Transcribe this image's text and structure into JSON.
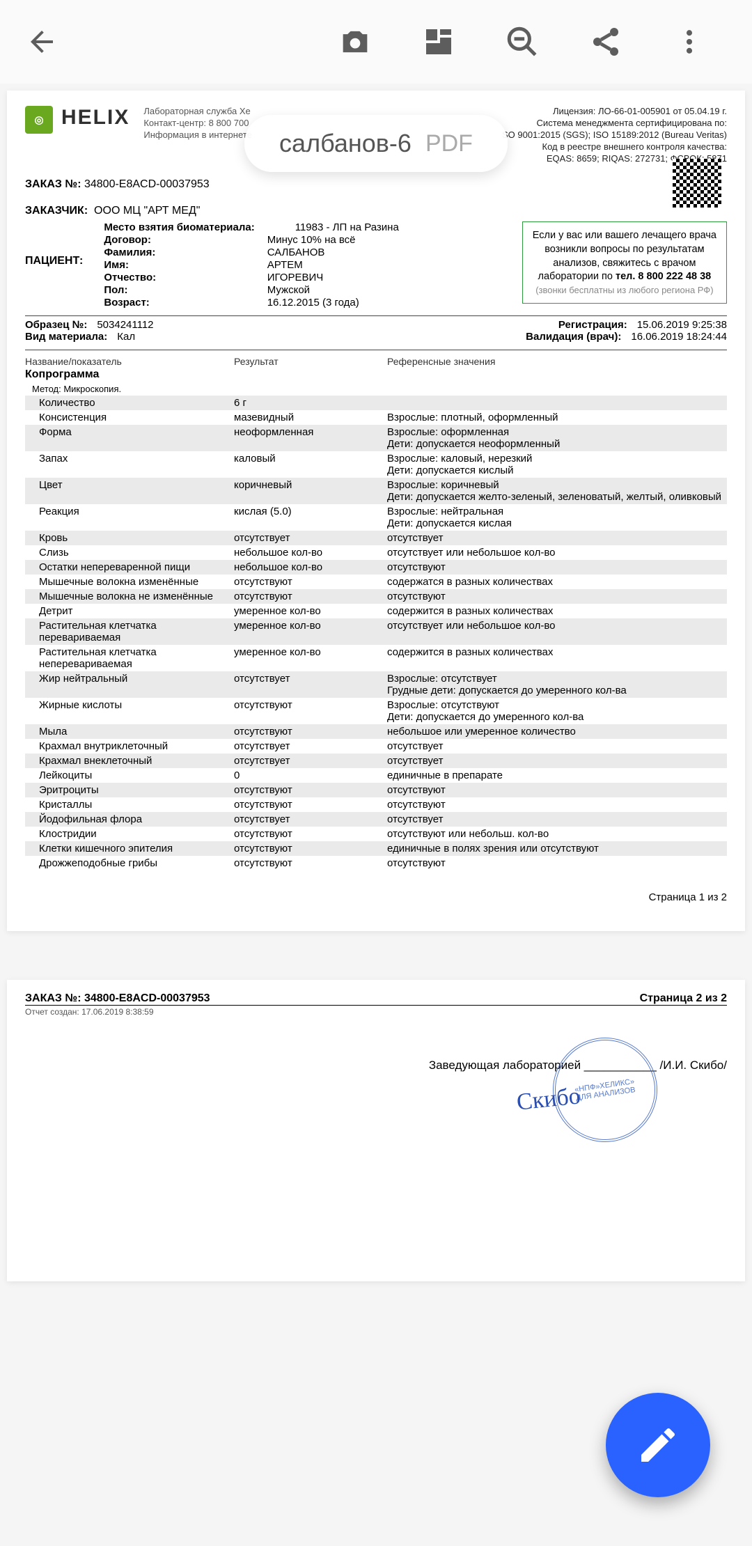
{
  "toolbar": {
    "filename": "салбанов-6",
    "ext": "PDF"
  },
  "brand": {
    "name": "HELIX",
    "lines": [
      "Лабораторная служба Хе",
      "Контакт-центр: 8 800 700",
      "Информация в интернете"
    ]
  },
  "license": [
    "Лицензия: ЛО-66-01-005901 от 05.04.19 г.",
    "Система менеджмента сертифицирована по:",
    "SO 9001:2015 (SGS); ISO 15189:2012 (Bureau Veritas)",
    "Код в реестре внешнего контроля качества:",
    "EQAS: 8659; RIQAS: 272731; ФСВОК: 5871"
  ],
  "order": {
    "label": "ЗАКАЗ №:",
    "value": "34800-E8ACD-00037953"
  },
  "customer": {
    "label": "ЗАКАЗЧИК:",
    "value": "ООО  МЦ \"АРТ МЕД\""
  },
  "patient": {
    "title": "ПАЦИЕНТ:",
    "site_label": "Место взятия биоматериала:",
    "site_value": "11983 - ЛП на Разина",
    "rows": [
      [
        "Договор:",
        "Минус 10% на всё"
      ],
      [
        "Фамилия:",
        "САЛБАНОВ"
      ],
      [
        "Имя:",
        "АРТЕМ"
      ],
      [
        "Отчество:",
        "ИГОРЕВИЧ"
      ],
      [
        "Пол:",
        "Мужской"
      ],
      [
        "Возраст:",
        "16.12.2015 (3 года)"
      ]
    ]
  },
  "sidebox": {
    "l1": "Если у вас или вашего лечащего врача",
    "l2": "возникли вопросы по результатам",
    "l3": "анализов, свяжитесь с врачом",
    "l4a": "лаборатории по ",
    "l4b": "тел. 8 800 222 48 38",
    "foot": "(звонки бесплатны из любого региона РФ)"
  },
  "sample": {
    "num_label": "Образец №:",
    "num_value": "5034241112",
    "mat_label": "Вид материала:",
    "mat_value": "Кал",
    "reg_label": "Регистрация:",
    "reg_value": "15.06.2019  9:25:38",
    "val_label": "Валидация (врач):",
    "val_value": "16.06.2019  18:24:44"
  },
  "table_head": {
    "c1": "Название/показатель",
    "c2": "Результат",
    "c3": "Референсные значения"
  },
  "section": "Копрограмма",
  "method": "Метод:  Микроскопия.",
  "rows": [
    [
      "Количество",
      "6 г",
      ""
    ],
    [
      "Консистенция",
      "мазевидный",
      "Взрослые: плотный, оформленный"
    ],
    [
      "Форма",
      "неоформленная",
      "Взрослые: оформленная\n Дети: допускается неоформленный"
    ],
    [
      "Запах",
      "каловый",
      "Взрослые: каловый, нерезкий\nДети: допускается кислый"
    ],
    [
      "Цвет",
      "коричневый",
      "Взрослые: коричневый\nДети: допускается желто-зеленый, зеленоватый, желтый, оливковый"
    ],
    [
      "Реакция",
      "кислая (5.0)",
      "Взрослые: нейтральная\nДети: допускается кислая"
    ],
    [
      "Кровь",
      "отсутствует",
      "отсутствует"
    ],
    [
      "Слизь",
      "небольшое кол-во",
      "отсутствует или небольшое кол-во"
    ],
    [
      "Остатки непереваренной пищи",
      "небольшое кол-во",
      "отсутствуют"
    ],
    [
      "Мышечные волокна изменённые",
      "отсутствуют",
      "содержатся в разных количествах"
    ],
    [
      "Мышечные волокна не изменённые",
      "отсутствуют",
      "отсутствуют"
    ],
    [
      "Детрит",
      "умеренное кол-во",
      "содержится в разных количествах"
    ],
    [
      "Растительная клетчатка перевариваемая",
      "умеренное кол-во",
      "отсутствует или небольшое кол-во"
    ],
    [
      "Растительная клетчатка неперевариваемая",
      "умеренное кол-во",
      "содержится в разных количествах"
    ],
    [
      "Жир нейтральный",
      "отсутствует",
      "Взрослые: отсутствует\nГрудные дети: допускается до умеренного кол-ва"
    ],
    [
      "Жирные кислоты",
      "отсутствуют",
      "Взрослые: отсутствуют\n Дети: допускается до умеренного кол-ва"
    ],
    [
      "Мыла",
      "отсутствуют",
      "небольшое или умеренное количество"
    ],
    [
      "Крахмал внутриклеточный",
      "отсутствует",
      "отсутствует"
    ],
    [
      "Крахмал внеклеточный",
      "отсутствует",
      "отсутствует"
    ],
    [
      "Лейкоциты",
      "0",
      "единичные в препарате"
    ],
    [
      "Эритроциты",
      "отсутствуют",
      "отсутствуют"
    ],
    [
      "Кристаллы",
      "отсутствуют",
      "отсутствуют"
    ],
    [
      "Йодофильная флора",
      "отсутствует",
      "отсутствует"
    ],
    [
      "Клостридии",
      "отсутствуют",
      "отсутствуют или небольш. кол-во"
    ],
    [
      "Клетки кишечного эпителия",
      "отсутствуют",
      "единичные в полях зрения или отсутствуют"
    ],
    [
      "Дрожжеподобные грибы",
      "отсутствуют",
      "отсутствуют"
    ]
  ],
  "page1_foot": "Страница 1 из 2",
  "page2": {
    "order_label": "ЗАКАЗ №: 34800-E8ACD-00037953",
    "page_label": "Страница 2 из 2",
    "created": "Отчет создан: 17.06.2019  8:38:59",
    "sign_label": "Заведующая лабораторией",
    "sign_name": "/И.И. Скибо/",
    "stamp": "«НПФ»ХЕЛИКС»\nДЛЯ АНАЛИЗОВ"
  }
}
